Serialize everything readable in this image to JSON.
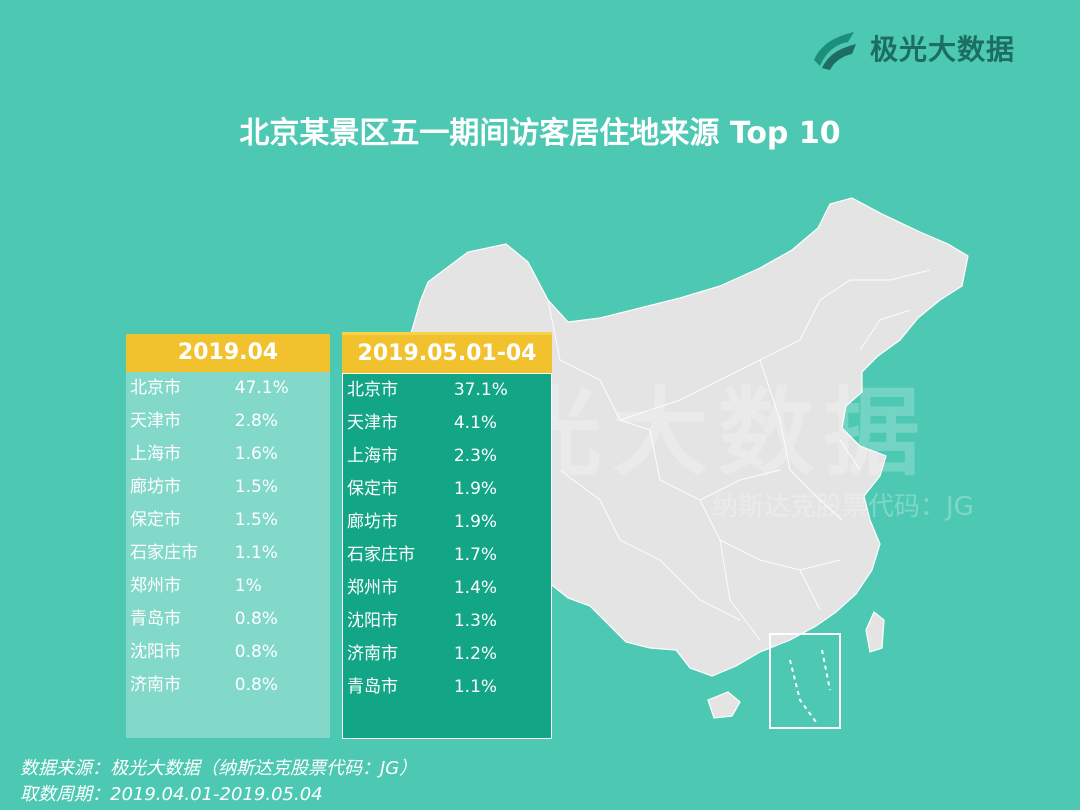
{
  "brand": {
    "logo_text": "极光大数据"
  },
  "title": "北京某景区五一期间访客居住地来源 Top 10",
  "watermark": {
    "main": "极光大数据",
    "sub": "纳斯达克股票代码：JG"
  },
  "chart_data": [
    {
      "type": "table",
      "title": "2019.04",
      "categories": [
        "北京市",
        "天津市",
        "上海市",
        "廊坊市",
        "保定市",
        "石家庄市",
        "郑州市",
        "青岛市",
        "沈阳市",
        "济南市"
      ],
      "values": [
        "47.1%",
        "2.8%",
        "1.6%",
        "1.5%",
        "1.5%",
        "1.1%",
        "1%",
        "0.8%",
        "0.8%",
        "0.8%"
      ]
    },
    {
      "type": "table",
      "title": "2019.05.01-04",
      "categories": [
        "北京市",
        "天津市",
        "上海市",
        "保定市",
        "廊坊市",
        "石家庄市",
        "郑州市",
        "沈阳市",
        "济南市",
        "青岛市"
      ],
      "values": [
        "37.1%",
        "4.1%",
        "2.3%",
        "1.9%",
        "1.9%",
        "1.7%",
        "1.4%",
        "1.3%",
        "1.2%",
        "1.1%"
      ]
    }
  ],
  "footer": {
    "source": "数据来源：极光大数据（纳斯达克股票代码：JG）",
    "period": "取数周期：2019.04.01-2019.05.04"
  },
  "colors": {
    "background": "#4dc8b2",
    "map": "#e6e6e6",
    "header": "#f2c12e",
    "panel_dark": "#12a586"
  }
}
